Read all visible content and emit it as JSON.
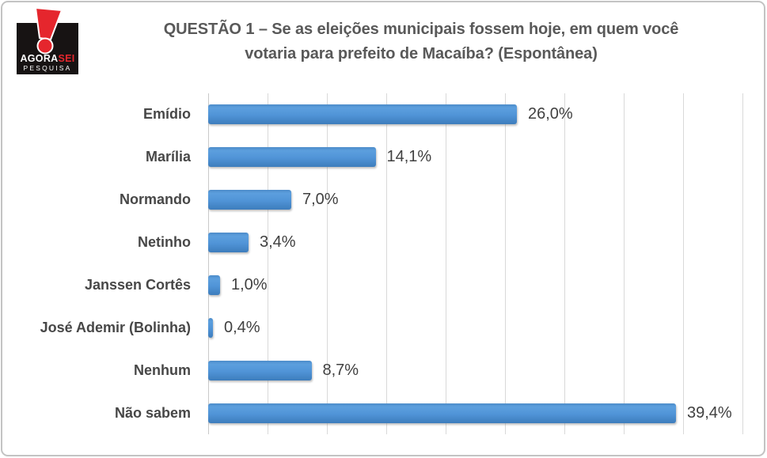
{
  "logo": {
    "brand_top": "AGORA",
    "brand_accent": "SEI",
    "brand_bottom": "PESQUISA",
    "bg_color": "#171313",
    "accent_color": "#e5262d"
  },
  "title_lines": [
    "QUESTÃO 1 – Se as eleições municipais fossem hoje, em quem você",
    "votaria para prefeito de Macaíba? (Espontânea)"
  ],
  "chart_data": {
    "type": "bar",
    "orientation": "horizontal",
    "title": "QUESTÃO 1 – Se as eleições municipais fossem hoje, em quem você votaria para prefeito de Macaíba? (Espontânea)",
    "categories": [
      "Emídio",
      "Marília",
      "Normando",
      "Netinho",
      "Janssen Cortês",
      "José Ademir (Bolinha)",
      "Nenhum",
      "Não sabem"
    ],
    "values": [
      26.0,
      14.1,
      7.0,
      3.4,
      1.0,
      0.4,
      8.7,
      39.4
    ],
    "value_labels": [
      "26,0%",
      "14,1%",
      "7,0%",
      "3,4%",
      "1,0%",
      "0,4%",
      "8,7%",
      "39,4%"
    ],
    "xlabel": "",
    "ylabel": "",
    "xlim": [
      0,
      45
    ],
    "grid_step": 5,
    "grid": true,
    "legend": false,
    "bar_color": "#4f93d6",
    "gridline_color": "#d9d9d9",
    "label_color": "#474747"
  }
}
